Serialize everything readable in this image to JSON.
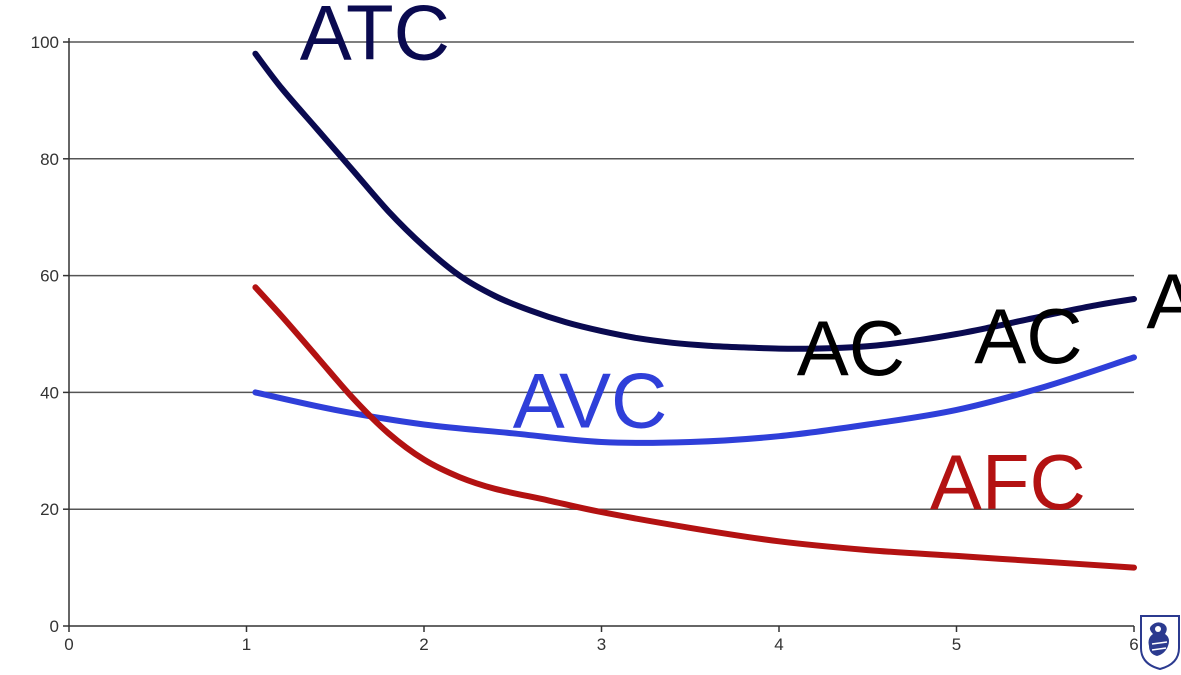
{
  "chart_data": {
    "type": "line",
    "title": "",
    "xlabel": "",
    "ylabel": "",
    "xlim": [
      0,
      6
    ],
    "ylim": [
      0,
      100
    ],
    "x_ticks": [
      "0",
      "1",
      "2",
      "3",
      "4",
      "5",
      "6"
    ],
    "y_ticks": [
      "0",
      "20",
      "40",
      "60",
      "80",
      "100"
    ],
    "grid": true,
    "series": [
      {
        "name": "ATC",
        "color": "#0a0a50",
        "x": [
          1.05,
          1.2,
          1.4,
          1.6,
          1.8,
          2.0,
          2.2,
          2.4,
          2.6,
          2.8,
          3.0,
          3.2,
          3.4,
          3.6,
          3.8,
          4.0,
          4.2,
          4.4,
          4.6,
          4.8,
          5.0,
          5.2,
          5.4,
          5.6,
          5.8,
          6.0
        ],
        "values": [
          98,
          92,
          85,
          78,
          71,
          65,
          60,
          56.5,
          54,
          52,
          50.5,
          49.3,
          48.5,
          48,
          47.7,
          47.5,
          47.5,
          47.7,
          48.2,
          49,
          50,
          51.2,
          52.5,
          53.8,
          55,
          56
        ]
      },
      {
        "name": "AVC",
        "color": "#2f3fd9",
        "x": [
          1.05,
          1.5,
          2.0,
          2.5,
          3.0,
          3.5,
          4.0,
          4.5,
          5.0,
          5.5,
          6.0
        ],
        "values": [
          40,
          37,
          34.5,
          33,
          31.5,
          31.5,
          32.5,
          34.5,
          37,
          41,
          46
        ]
      },
      {
        "name": "AFC",
        "color": "#b31212",
        "x": [
          1.05,
          1.2,
          1.4,
          1.6,
          1.8,
          2.0,
          2.2,
          2.4,
          2.7,
          3.0,
          3.5,
          4.0,
          4.5,
          5.0,
          5.5,
          6.0
        ],
        "values": [
          58,
          53,
          46,
          39,
          33,
          28.5,
          25.5,
          23.5,
          21.5,
          19.5,
          16.8,
          14.5,
          13,
          12,
          11,
          10
        ]
      }
    ],
    "labels": [
      {
        "text": "ATC",
        "x": 1.3,
        "y": 97,
        "color": "#0a0a50",
        "size": "large"
      },
      {
        "text": "AVC",
        "x": 2.5,
        "y": 34,
        "color": "#2f3fd9",
        "size": "large"
      },
      {
        "text": "AFC",
        "x": 4.85,
        "y": 20,
        "color": "#b31212",
        "size": "large"
      },
      {
        "text": "AC",
        "x": 4.1,
        "y": 43,
        "color": "#000000",
        "size": "large"
      },
      {
        "text": "AC",
        "x": 5.1,
        "y": 45,
        "color": "#000000",
        "size": "large"
      },
      {
        "text": "A",
        "x": 6.07,
        "y": 51,
        "color": "#000000",
        "size": "large"
      }
    ],
    "logo": "university-crest-icon"
  }
}
